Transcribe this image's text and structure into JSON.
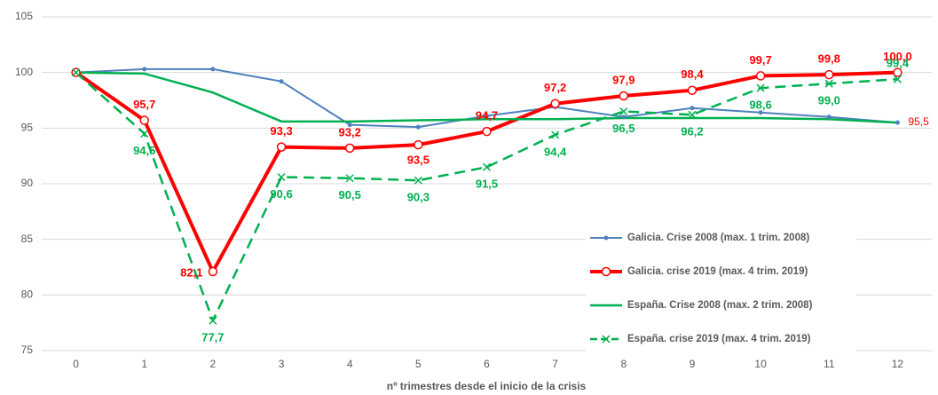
{
  "chart_data": {
    "type": "line",
    "x_label": "nº trimestres desde el inicio de la crisis",
    "categories": [
      "0",
      "1",
      "2",
      "3",
      "4",
      "5",
      "6",
      "7",
      "8",
      "9",
      "10",
      "11",
      "12"
    ],
    "ylim": [
      75,
      105
    ],
    "yticks": [
      75,
      80,
      85,
      90,
      95,
      100,
      105
    ],
    "grid": true,
    "legend": "lower right",
    "series": [
      {
        "name": "Galicia. Crise 2008 (max. 1 trim. 2008)",
        "color": "#4f81bd",
        "line_width": 2,
        "dash": "none",
        "marker": "dot",
        "values": [
          100,
          100.3,
          100.3,
          99.2,
          95.3,
          95.1,
          96.1,
          96.9,
          96.0,
          96.8,
          96.4,
          96.0,
          95.5
        ],
        "value_labels": [
          null,
          null,
          null,
          null,
          null,
          null,
          null,
          null,
          null,
          null,
          null,
          null,
          "95,5"
        ],
        "label_color": "#ff0000"
      },
      {
        "name": "Galicia. crise 2019 (max. 4 trim. 2019)",
        "color": "#ff0000",
        "line_width": 4,
        "dash": "none",
        "marker": "circle",
        "values": [
          100,
          95.7,
          82.1,
          93.3,
          93.2,
          93.5,
          94.7,
          97.2,
          97.9,
          98.4,
          99.7,
          99.8,
          100.0
        ],
        "value_labels": [
          null,
          "95,7",
          "82,1",
          "93,3",
          "93,2",
          "93,5",
          "94,7",
          "97,2",
          "97,9",
          "98,4",
          "99,7",
          "99,8",
          "100,0"
        ],
        "label_color": "#ff0000"
      },
      {
        "name": "España. Crise 2008 (max. 2 trim. 2008)",
        "color": "#00b050",
        "line_width": 2.5,
        "dash": "none",
        "marker": "none",
        "values": [
          100,
          99.9,
          98.2,
          95.6,
          95.6,
          95.7,
          95.8,
          95.8,
          95.9,
          95.9,
          95.9,
          95.8,
          95.5
        ]
      },
      {
        "name": "España. crise 2019 (max. 4 trim. 2019)",
        "color": "#00b050",
        "line_width": 2.5,
        "dash": "12 7",
        "marker": "x",
        "values": [
          100,
          94.5,
          77.7,
          90.6,
          90.5,
          90.3,
          91.5,
          94.4,
          96.5,
          96.2,
          98.6,
          99.0,
          99.4
        ],
        "value_labels": [
          null,
          "94,5",
          "77,7",
          "90,6",
          "90,5",
          "90,3",
          "91,5",
          "94,4",
          "96,5",
          "96,2",
          "98,6",
          "99,0",
          "99,4"
        ],
        "label_color": "#00b050"
      }
    ]
  }
}
